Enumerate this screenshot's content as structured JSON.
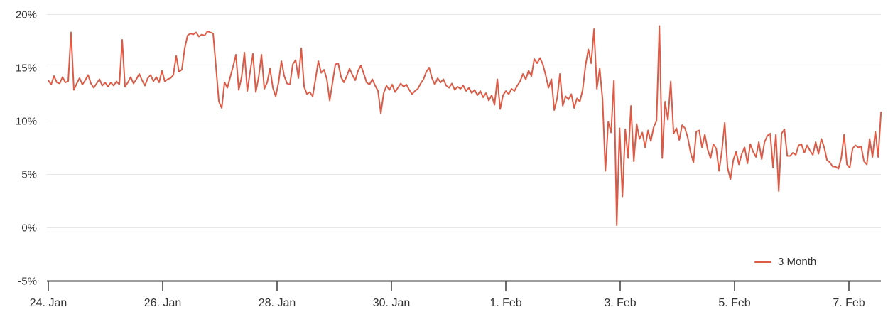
{
  "colors": {
    "background": "#ffffff",
    "series": "#dc5b47",
    "grid": "#e7e7e7",
    "axis": "#3a3a3a",
    "text": "#333333"
  },
  "legend": {
    "label": "3 Month"
  },
  "chart_data": {
    "type": "line",
    "title": "",
    "xlabel": "",
    "ylabel": "",
    "grid": "horizontal-only",
    "legend_position": "bottom-right",
    "ylim": [
      -5,
      20
    ],
    "x_range_days": [
      0,
      14.56
    ],
    "y_ticks": [
      {
        "value": 20,
        "label": "20%"
      },
      {
        "value": 15,
        "label": "15%"
      },
      {
        "value": 10,
        "label": "10%"
      },
      {
        "value": 5,
        "label": "5%"
      },
      {
        "value": 0,
        "label": "0%"
      },
      {
        "value": -5,
        "label": "-5%"
      }
    ],
    "x_ticks": [
      {
        "day": 0,
        "label": "24. Jan"
      },
      {
        "day": 2,
        "label": "26. Jan"
      },
      {
        "day": 4,
        "label": "28. Jan"
      },
      {
        "day": 6,
        "label": "30. Jan"
      },
      {
        "day": 8,
        "label": "1. Feb"
      },
      {
        "day": 10,
        "label": "3. Feb"
      },
      {
        "day": 12,
        "label": "5. Feb"
      },
      {
        "day": 14,
        "label": "7. Feb"
      }
    ],
    "series": [
      {
        "name": "3 Month",
        "color": "#dc5b47",
        "unit": "%",
        "x_start_day": 0,
        "x_step_days": 0.0497,
        "values": [
          13.8,
          13.4,
          14.2,
          13.6,
          13.5,
          14.1,
          13.6,
          13.7,
          18.3,
          12.9,
          13.5,
          14.0,
          13.4,
          13.8,
          14.3,
          13.5,
          13.1,
          13.5,
          13.9,
          13.3,
          13.6,
          13.2,
          13.6,
          13.3,
          13.7,
          13.4,
          17.6,
          13.2,
          13.6,
          14.1,
          13.5,
          13.9,
          14.4,
          13.8,
          13.3,
          14.0,
          14.3,
          13.7,
          14.1,
          13.6,
          14.7,
          13.7,
          13.9,
          14.0,
          14.3,
          16.1,
          14.6,
          14.8,
          16.8,
          18.0,
          18.2,
          18.1,
          18.3,
          17.9,
          18.1,
          18.0,
          18.4,
          18.3,
          18.2,
          15.0,
          11.8,
          11.2,
          13.6,
          13.1,
          14.1,
          15.1,
          16.2,
          12.9,
          14.1,
          16.4,
          12.8,
          14.6,
          16.3,
          12.7,
          14.1,
          16.2,
          13.0,
          13.6,
          14.9,
          13.1,
          12.3,
          13.6,
          15.6,
          14.2,
          13.5,
          13.4,
          15.3,
          15.7,
          14.0,
          16.8,
          13.2,
          12.5,
          12.7,
          12.3,
          13.9,
          15.6,
          14.5,
          14.8,
          13.9,
          11.9,
          13.6,
          15.3,
          15.4,
          14.1,
          13.6,
          14.2,
          14.9,
          14.3,
          13.8,
          14.7,
          15.2,
          14.4,
          13.6,
          13.4,
          13.9,
          13.3,
          12.8,
          10.7,
          12.6,
          13.3,
          12.9,
          13.4,
          12.7,
          13.1,
          13.5,
          13.2,
          13.4,
          12.9,
          12.5,
          12.8,
          13.0,
          13.5,
          13.9,
          14.6,
          15.0,
          14.0,
          13.4,
          14.0,
          13.6,
          13.9,
          13.3,
          13.1,
          13.5,
          12.9,
          13.2,
          13.0,
          13.3,
          12.8,
          13.1,
          12.6,
          12.9,
          12.4,
          12.8,
          12.2,
          12.6,
          11.9,
          12.4,
          11.5,
          13.9,
          11.1,
          12.4,
          12.8,
          12.5,
          13.0,
          12.8,
          13.3,
          13.7,
          14.4,
          13.9,
          14.7,
          14.2,
          15.8,
          15.4,
          15.9,
          15.3,
          14.3,
          13.1,
          13.9,
          11.0,
          12.1,
          14.4,
          11.4,
          12.3,
          12.0,
          12.5,
          11.2,
          12.1,
          11.8,
          12.9,
          15.2,
          16.7,
          15.4,
          18.6,
          13.0,
          14.9,
          12.0,
          5.3,
          9.9,
          8.9,
          13.8,
          0.2,
          9.3,
          2.9,
          9.2,
          6.5,
          11.4,
          6.2,
          9.7,
          8.3,
          8.9,
          7.5,
          9.1,
          8.1,
          9.4,
          10.0,
          18.9,
          6.5,
          11.8,
          10.1,
          13.7,
          8.8,
          9.3,
          8.2,
          9.6,
          9.3,
          8.4,
          7.0,
          6.1,
          9.0,
          9.1,
          7.5,
          8.7,
          7.3,
          6.5,
          7.8,
          7.4,
          5.3,
          7.2,
          9.8,
          5.6,
          4.5,
          6.3,
          7.1,
          5.9,
          6.9,
          7.5,
          6.0,
          7.8,
          7.1,
          6.6,
          8.0,
          6.4,
          8.0,
          8.6,
          8.8,
          5.6,
          8.7,
          3.4,
          8.8,
          9.2,
          6.7,
          6.7,
          7.0,
          6.8,
          7.7,
          7.8,
          7.0,
          7.7,
          7.2,
          6.8,
          8.0,
          6.9,
          8.3,
          7.5,
          6.3,
          6.1,
          5.7,
          5.7,
          5.5,
          6.5,
          8.7,
          5.9,
          5.6,
          7.4,
          7.7,
          7.5,
          7.6,
          6.2,
          5.9,
          8.3,
          6.6,
          9.0,
          6.6,
          10.8
        ]
      }
    ]
  }
}
